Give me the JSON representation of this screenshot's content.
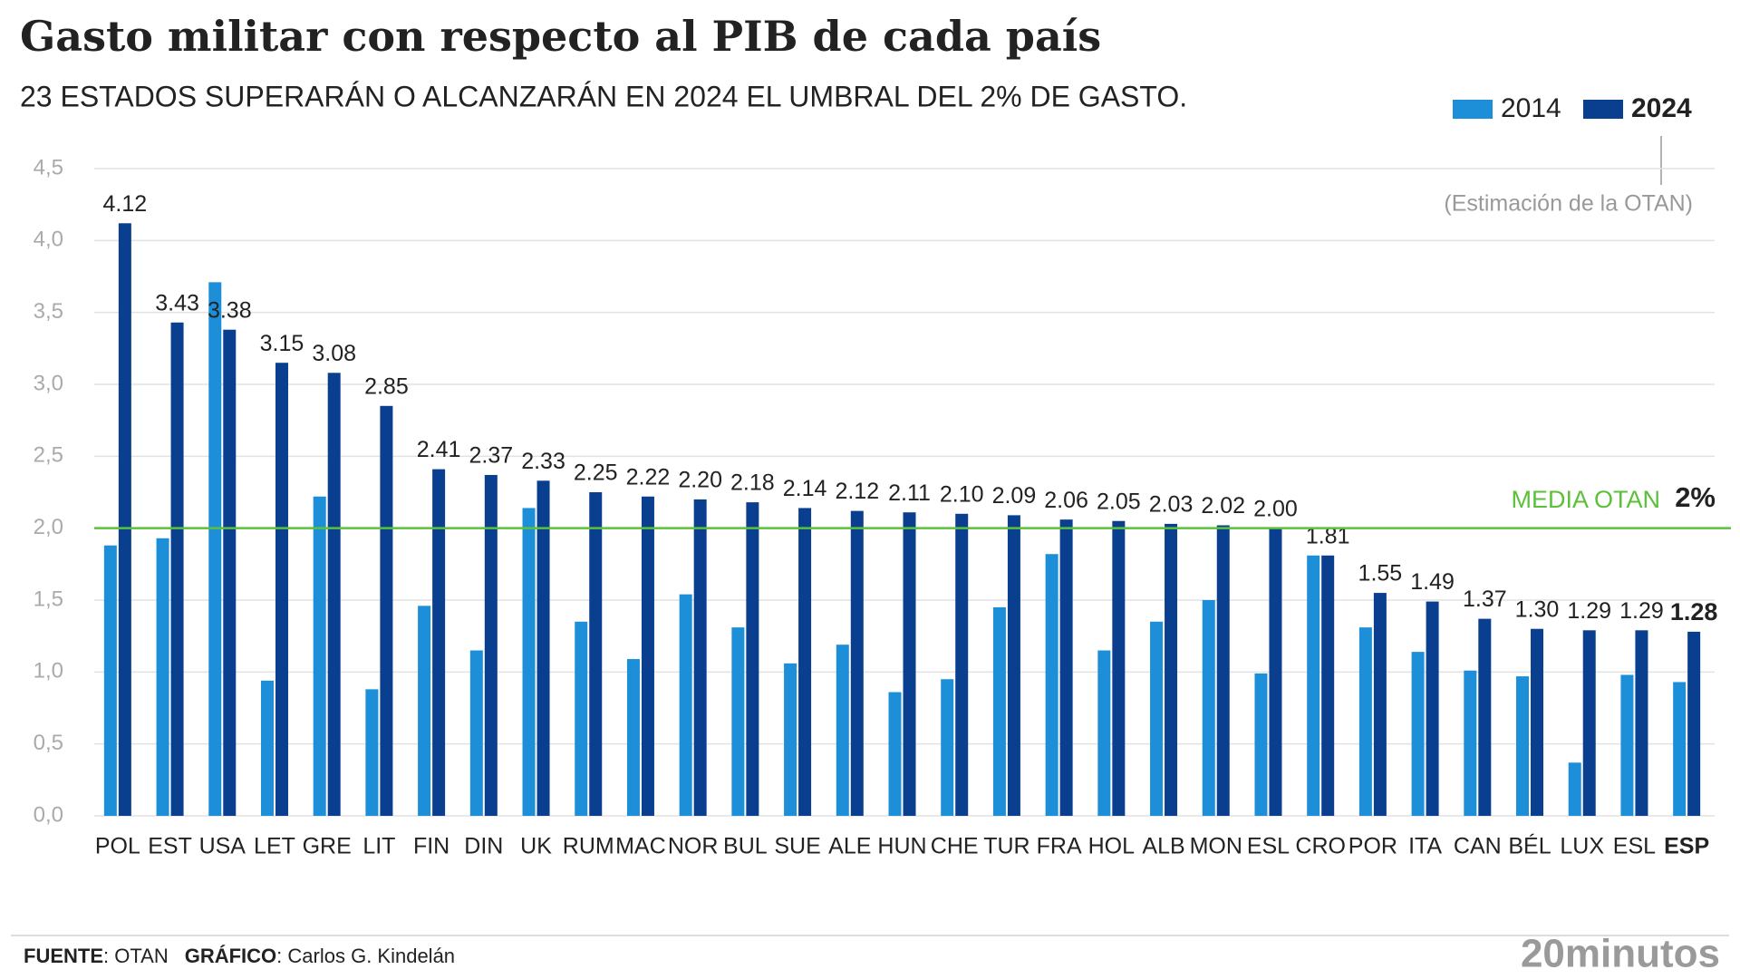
{
  "chart_data": {
    "type": "bar",
    "title": "Gasto militar con respecto al PIB de cada país",
    "subtitle": "23 ESTADOS SUPERARÁN O ALCANZARÁN EN 2024 EL UMBRAL DEL 2% DE GASTO.",
    "annotation": "(Estimación de la OTAN)",
    "categories": [
      "POL",
      "EST",
      "USA",
      "LET",
      "GRE",
      "LIT",
      "FIN",
      "DIN",
      "UK",
      "RUM",
      "MAC",
      "NOR",
      "BUL",
      "SUE",
      "ALE",
      "HUN",
      "CHE",
      "TUR",
      "FRA",
      "HOL",
      "ALB",
      "MON",
      "ESL",
      "CRO",
      "POR",
      "ITA",
      "CAN",
      "BÉL",
      "LUX",
      "ESL",
      "ESP"
    ],
    "series": [
      {
        "name": "2014",
        "color": "#1c8fd8",
        "values": [
          1.88,
          1.93,
          3.71,
          0.94,
          2.22,
          0.88,
          1.46,
          1.15,
          2.14,
          1.35,
          1.09,
          1.54,
          1.31,
          1.06,
          1.19,
          0.86,
          0.95,
          1.45,
          1.82,
          1.15,
          1.35,
          1.5,
          0.99,
          1.81,
          1.31,
          1.14,
          1.01,
          0.97,
          0.37,
          0.98,
          0.93
        ]
      },
      {
        "name": "2024",
        "color": "#0a3f8f",
        "values": [
          4.12,
          3.43,
          3.38,
          3.15,
          3.08,
          2.85,
          2.41,
          2.37,
          2.33,
          2.25,
          2.22,
          2.2,
          2.18,
          2.14,
          2.12,
          2.11,
          2.1,
          2.09,
          2.06,
          2.05,
          2.03,
          2.02,
          2,
          1.81,
          1.55,
          1.49,
          1.37,
          1.3,
          1.29,
          1.29,
          1.28
        ],
        "value_labels": [
          "4.12",
          "3.43",
          "3.38",
          "3.15",
          "3.08",
          "2.85",
          "2.41",
          "2.37",
          "2.33",
          "2.25",
          "2.22",
          "2.20",
          "2.18",
          "2.14",
          "2.12",
          "2.11",
          "2.10",
          "2.09",
          "2.06",
          "2.05",
          "2.03",
          "2.02",
          "2.00",
          "1.81",
          "1.55",
          "1.49",
          "1.37",
          "1.30",
          "1.29",
          "1.29",
          "1.28"
        ]
      }
    ],
    "ylim": [
      0,
      4.5
    ],
    "yticks": [
      {
        "value": 0,
        "label": "0,0"
      },
      {
        "value": 0.5,
        "label": "0,5"
      },
      {
        "value": 1,
        "label": "1,0"
      },
      {
        "value": 1.5,
        "label": "1,5"
      },
      {
        "value": 2,
        "label": "2,0"
      },
      {
        "value": 2.5,
        "label": "2,5"
      },
      {
        "value": 3,
        "label": "3,0"
      },
      {
        "value": 3.5,
        "label": "3,5"
      },
      {
        "value": 4,
        "label": "4,0"
      },
      {
        "value": 4.5,
        "label": "4,5"
      }
    ],
    "grid": true,
    "legend": "top-right",
    "reference_line": {
      "value": 2,
      "label": "MEDIA OTAN",
      "value_label": "2%",
      "color": "#5cc13a"
    },
    "highlight_category": 30,
    "source": {
      "label": "FUENTE",
      "text": ": OTAN",
      "credit_label": "GRÁFICO",
      "credit": ": Carlos G. Kindelán",
      "logo": "20minutos"
    }
  }
}
